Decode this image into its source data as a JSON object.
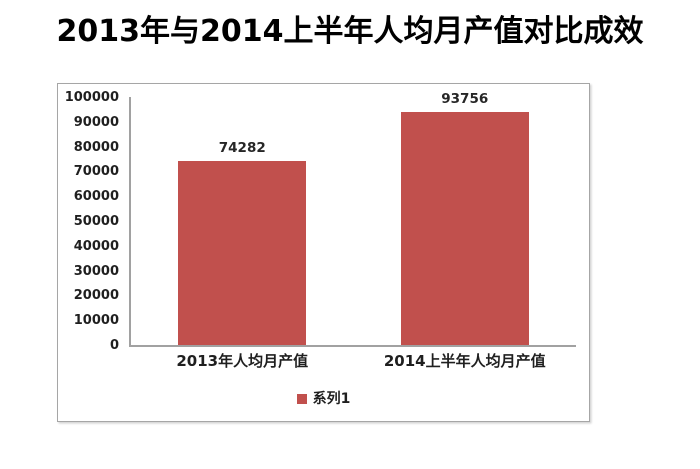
{
  "title": {
    "text": "2013年与2014上半年人均月产值对比成效"
  },
  "chart_data": {
    "type": "bar",
    "title": "2013年与2014上半年人均月产值对比成效",
    "categories": [
      "2013年人均月产值",
      "2014上半年人均月产值"
    ],
    "series": [
      {
        "name": "系列1",
        "values": [
          74282,
          93756
        ]
      }
    ],
    "data_labels": [
      "74282",
      "93756"
    ],
    "xlabel": "",
    "ylabel": "",
    "ylim": [
      0,
      100000
    ],
    "ytick_step": 10000,
    "ytick_labels": [
      "0",
      "10000",
      "20000",
      "30000",
      "40000",
      "50000",
      "60000",
      "70000",
      "80000",
      "90000",
      "100000"
    ],
    "grid": false,
    "legend_position": "bottom-center",
    "legend_entries": [
      "系列1"
    ],
    "bar_color": "#C1504D",
    "axis_line_color": "#a1a1a1",
    "frame_border_color": "#a6a6a6",
    "text_color": "#1f1f1f"
  }
}
